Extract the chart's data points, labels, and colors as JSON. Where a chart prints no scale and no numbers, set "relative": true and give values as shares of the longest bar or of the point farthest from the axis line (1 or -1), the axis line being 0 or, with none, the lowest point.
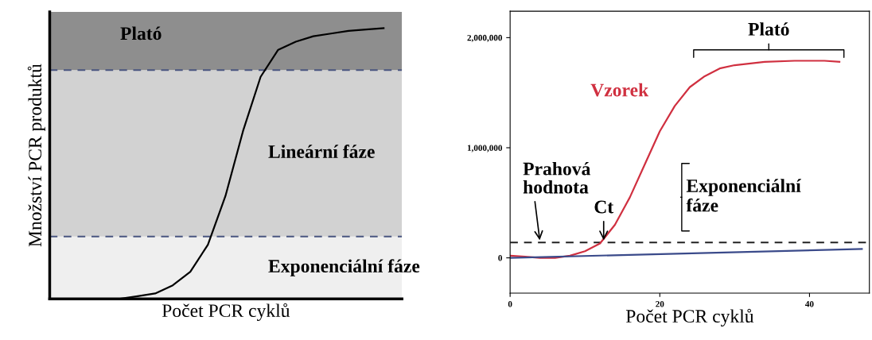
{
  "chart_data": [
    {
      "type": "line",
      "relative": true,
      "xlabel": "Počet PCR cyklů",
      "ylabel": "Množství PCR produktů",
      "categories": [
        null,
        null,
        null,
        null,
        null,
        null,
        null,
        null,
        null,
        null,
        null,
        null,
        null,
        null,
        null,
        null,
        null,
        null,
        null,
        null
      ],
      "series": [
        {
          "color": "#000000",
          "values": [
            0.0,
            0.0,
            0.0,
            0.0,
            0.0,
            0.01,
            0.02,
            0.05,
            0.1,
            0.2,
            0.38,
            0.62,
            0.82,
            0.92,
            0.95,
            0.97,
            0.98,
            0.99,
            0.995,
            1.0
          ]
        }
      ],
      "bands": [
        {
          "axis": "y",
          "from": 0,
          "to": 0.23,
          "label": "Exponenciální fáze",
          "color": "#efefef"
        },
        {
          "axis": "y",
          "from": 0.23,
          "to": 0.845,
          "label": "Lineární fáze",
          "color": "#d2d2d2"
        },
        {
          "axis": "y",
          "from": 0.845,
          "to": 1.06,
          "label": "Plató",
          "color": "#8e8e8e"
        }
      ],
      "ref_lines": [
        {
          "axis": "y",
          "value": 0.23,
          "color": "#4a5680",
          "line_style": "dashed"
        },
        {
          "axis": "y",
          "value": 0.845,
          "color": "#4a5680",
          "line_style": "dashed"
        }
      ],
      "tick_labels": false,
      "grid": false
    },
    {
      "type": "line",
      "xlabel": "Počet PCR cyklů",
      "xlim": [
        0,
        48
      ],
      "xticks": [
        0,
        20,
        40
      ],
      "ylim": [
        -320000,
        2240000
      ],
      "yticks": [
        {
          "value": 0,
          "label": "0"
        },
        {
          "value": 1000000,
          "label": "1,000,000"
        },
        {
          "value": 2000000,
          "label": "2,000,000"
        }
      ],
      "series": [
        {
          "name": "Vzorek",
          "color": "#d03040",
          "x": [
            0,
            2,
            4,
            6,
            8,
            10,
            12,
            14,
            16,
            18,
            20,
            22,
            24,
            26,
            28,
            30,
            34,
            38,
            42,
            44
          ],
          "values": [
            20000,
            10000,
            0,
            0,
            20000,
            60000,
            130000,
            300000,
            550000,
            850000,
            1150000,
            1380000,
            1550000,
            1650000,
            1720000,
            1750000,
            1780000,
            1790000,
            1790000,
            1780000
          ]
        },
        {
          "color": "#3a4a8a",
          "x": [
            0,
            47
          ],
          "values": [
            0,
            80000
          ]
        }
      ],
      "ref_lines": [
        {
          "axis": "y",
          "value": 140000,
          "color": "#222222",
          "line_style": "dashed"
        }
      ],
      "annotations": [
        {
          "text": "Prahová hodnota",
          "x": 4,
          "y": 140000
        },
        {
          "text": "Ct",
          "x": 12.5,
          "y": 140000
        },
        "Exponenciální fáze",
        "Plató"
      ],
      "grid": false
    }
  ]
}
